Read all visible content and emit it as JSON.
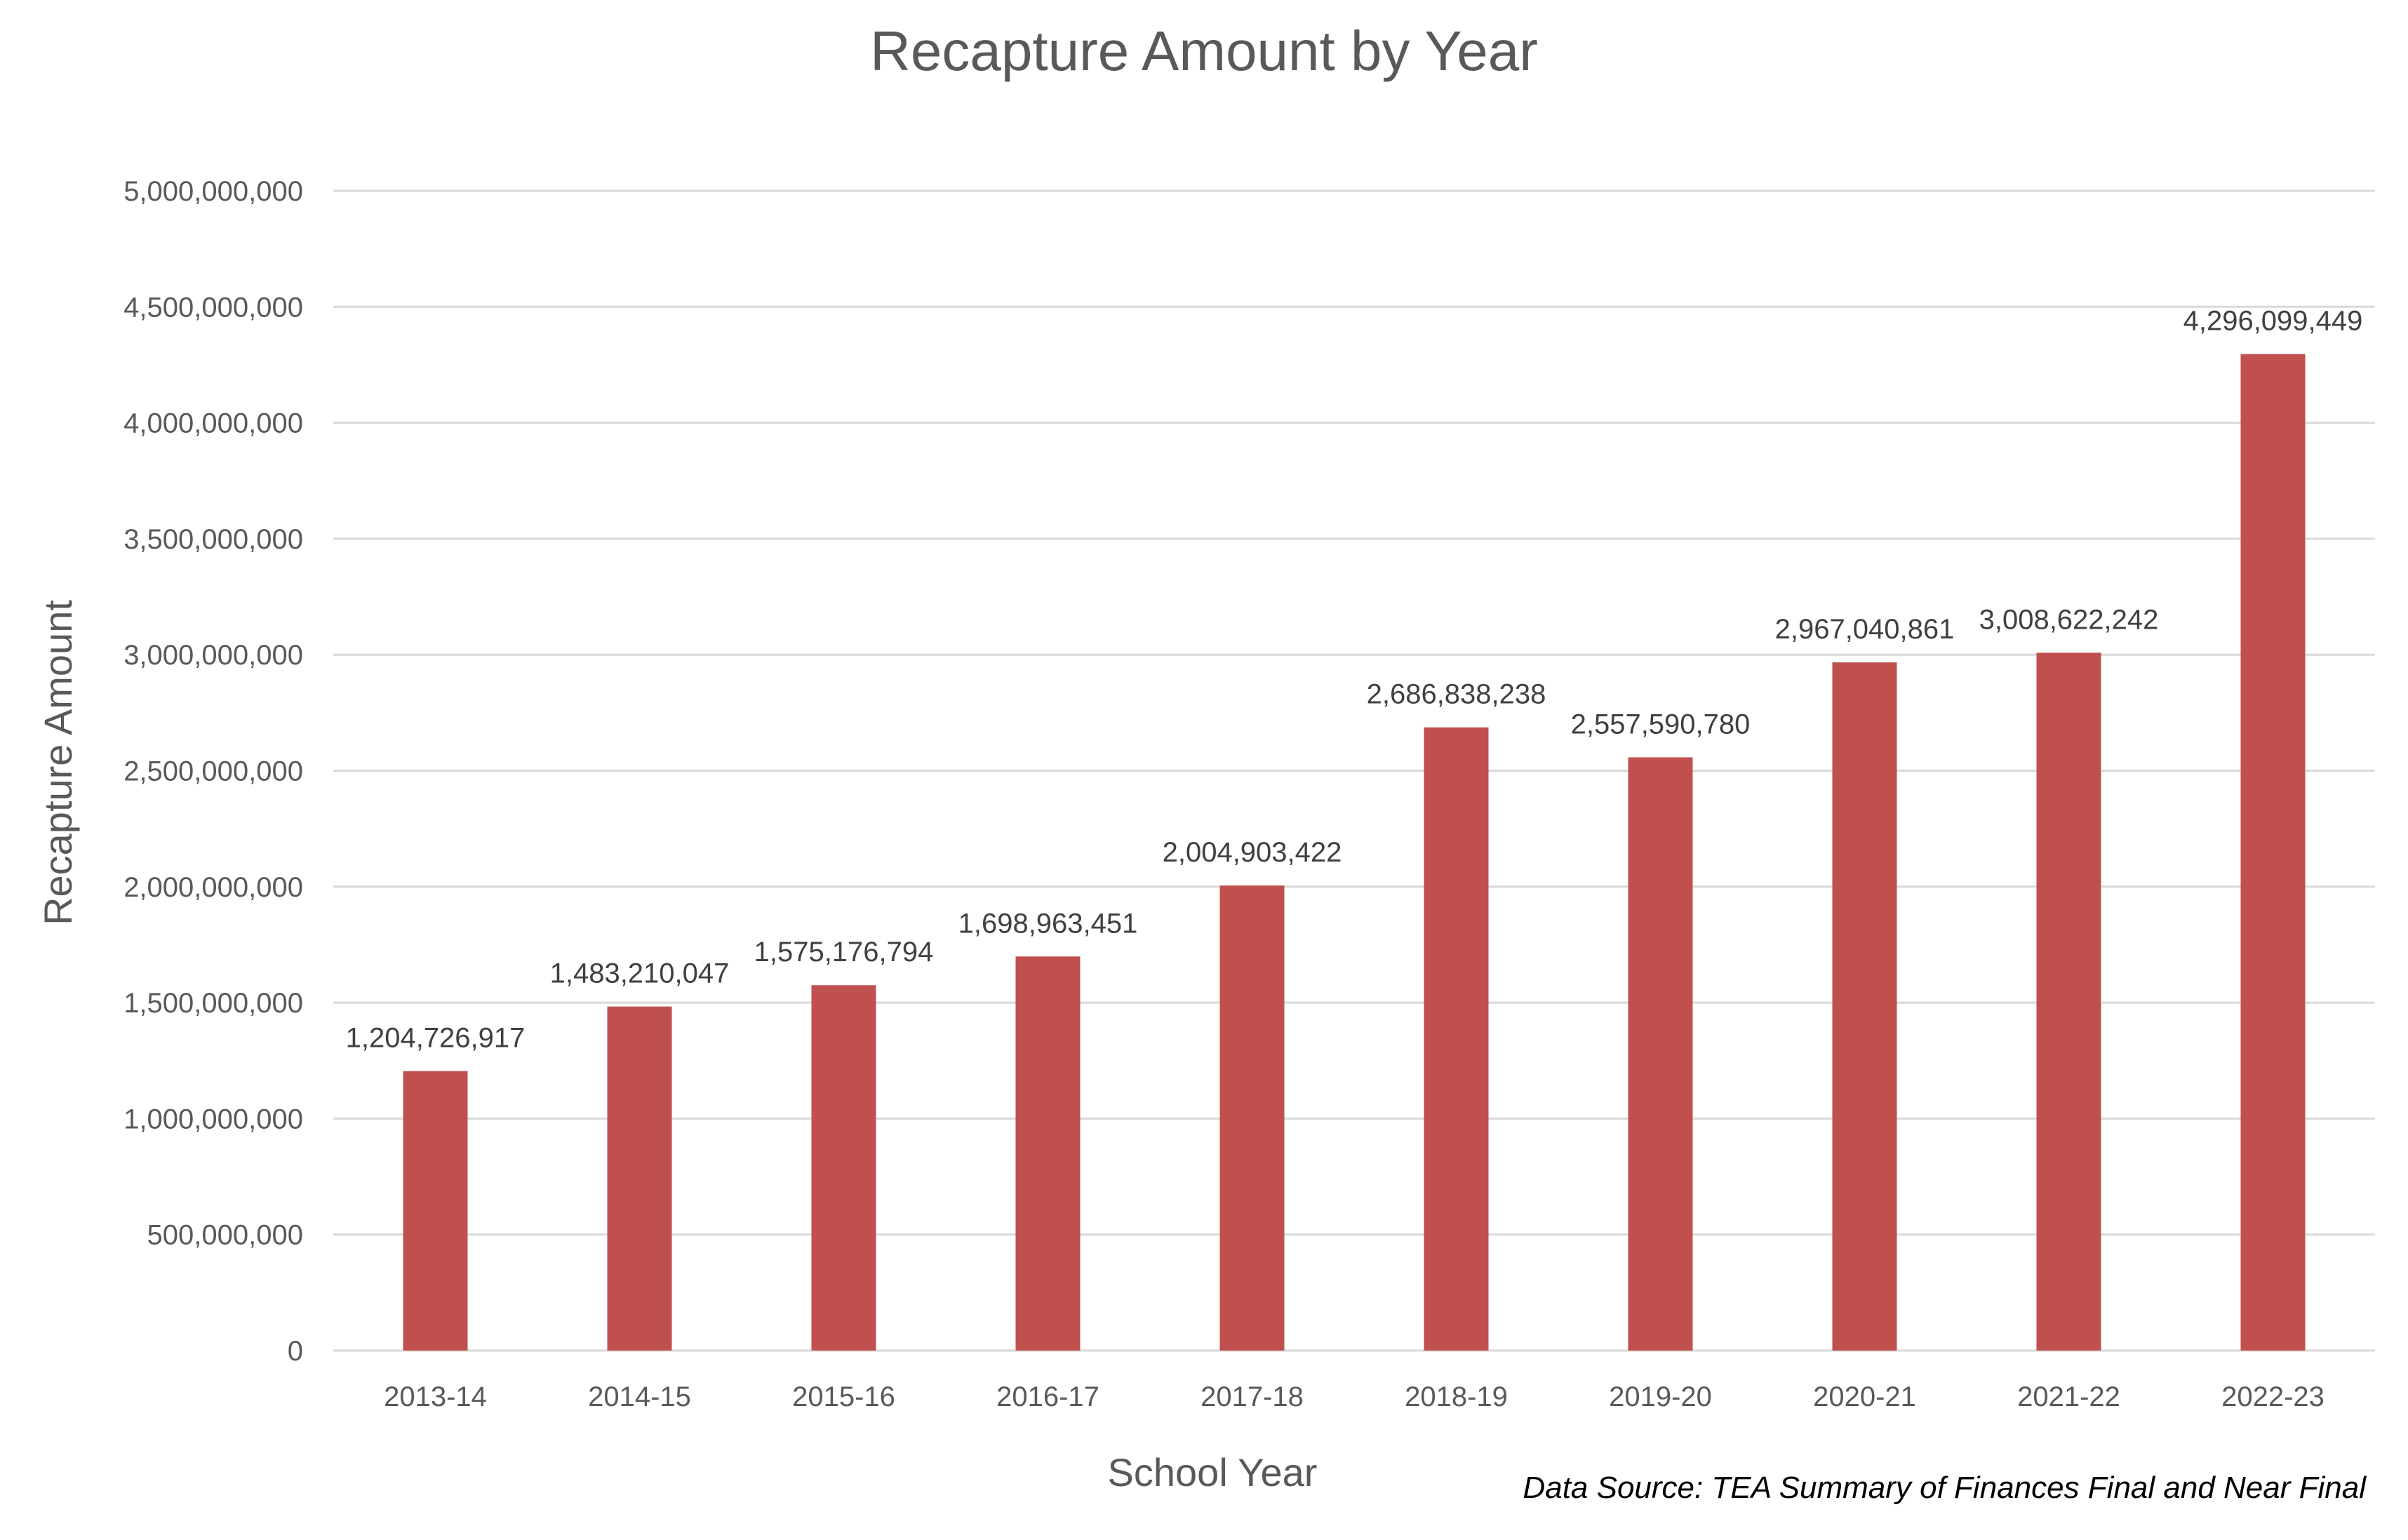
{
  "chart_data": {
    "type": "bar",
    "title": "Recapture Amount by Year",
    "xlabel": "School Year",
    "ylabel": "Recapture Amount",
    "source_note": "Data Source: TEA Summary of Finances Final and Near Final",
    "categories": [
      "2013-14",
      "2014-15",
      "2015-16",
      "2016-17",
      "2017-18",
      "2018-19",
      "2019-20",
      "2020-21",
      "2021-22",
      "2022-23"
    ],
    "values": [
      1204726917,
      1483210047,
      1575176794,
      1698963451,
      2004903422,
      2686838238,
      2557590780,
      2967040861,
      3008622242,
      4296099449
    ],
    "value_labels": [
      "1,204,726,917",
      "1,483,210,047",
      "1,575,176,794",
      "1,698,963,451",
      "2,004,903,422",
      "2,686,838,238",
      "2,557,590,780",
      "2,967,040,861",
      "3,008,622,242",
      "4,296,099,449"
    ],
    "ylim": [
      0,
      5000000000
    ],
    "yticks": [
      0,
      500000000,
      1000000000,
      1500000000,
      2000000000,
      2500000000,
      3000000000,
      3500000000,
      4000000000,
      4500000000,
      5000000000
    ],
    "ytick_labels": [
      "0",
      "500,000,000",
      "1,000,000,000",
      "1,500,000,000",
      "2,000,000,000",
      "2,500,000,000",
      "3,000,000,000",
      "3,500,000,000",
      "4,000,000,000",
      "4,500,000,000",
      "5,000,000,000"
    ],
    "grid": true,
    "legend": false,
    "bar_color": "#c0504d",
    "grid_color": "#d9d9d9"
  }
}
